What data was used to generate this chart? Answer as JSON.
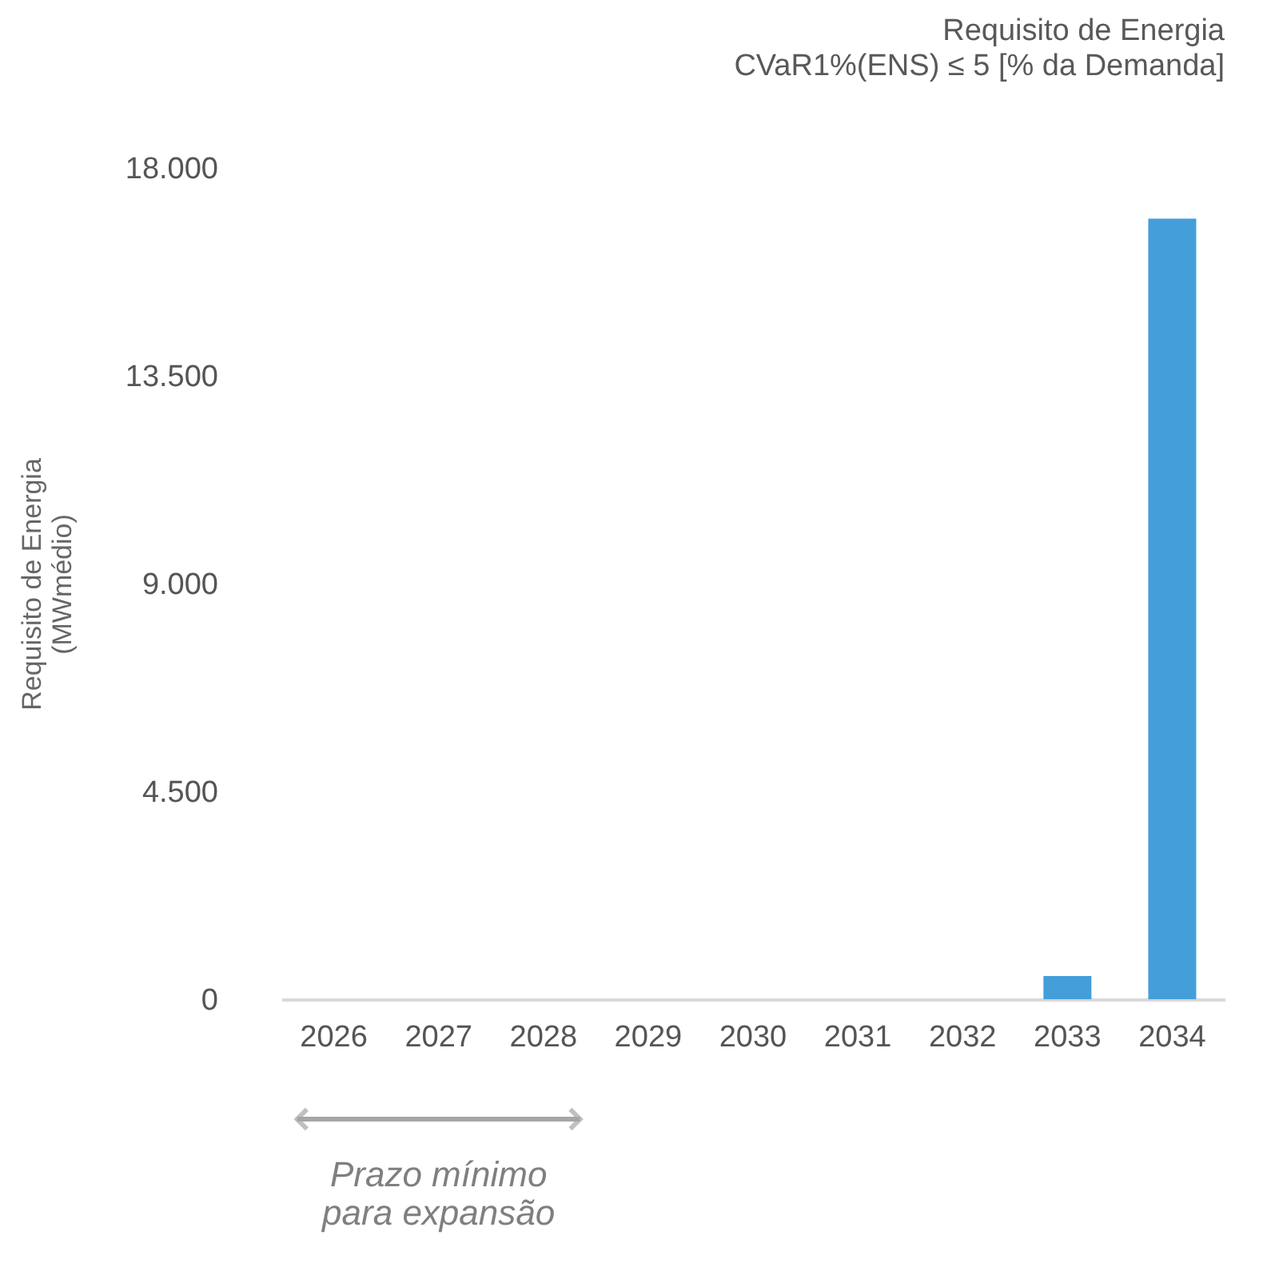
{
  "chart_data": {
    "type": "bar",
    "title": "Requisito de Energia",
    "subtitle": "CVaR1%(ENS) ≤ 5 [% da Demanda]",
    "ylabel": "Requisito de Energia\n(MWmédio)",
    "categories": [
      "2026",
      "2027",
      "2028",
      "2029",
      "2030",
      "2031",
      "2032",
      "2033",
      "2034"
    ],
    "values": [
      0,
      0,
      0,
      0,
      0,
      0,
      0,
      500,
      16900
    ],
    "color": "#449ed9",
    "ylim": [
      0,
      18000
    ],
    "yticks": [
      {
        "value": 0,
        "label": "0"
      },
      {
        "value": 4500,
        "label": "4.500"
      },
      {
        "value": 9000,
        "label": "9.000"
      },
      {
        "value": 13500,
        "label": "13.500"
      },
      {
        "value": 18000,
        "label": "18.000"
      }
    ],
    "grid": false,
    "annotations": [
      "Prazo mínimo\npara expansão"
    ]
  }
}
